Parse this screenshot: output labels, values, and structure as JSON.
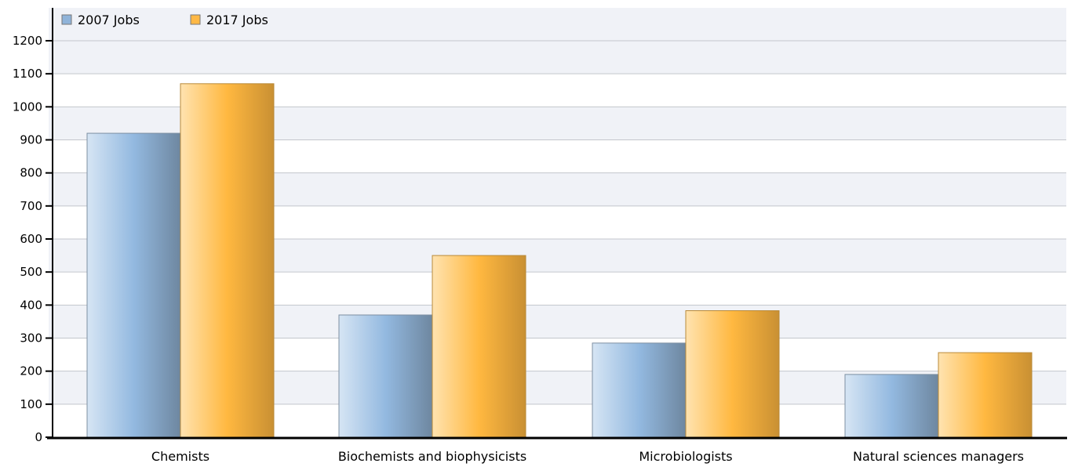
{
  "chart_data": {
    "type": "bar",
    "categories": [
      "Chemists",
      "Biochemists and biophysicists",
      "Microbiologists",
      "Natural sciences managers"
    ],
    "series": [
      {
        "name": "2007 Jobs",
        "values": [
          920,
          370,
          285,
          190
        ],
        "color": "#8fb3d9"
      },
      {
        "name": "2017 Jobs",
        "values": [
          1070,
          550,
          383,
          256
        ],
        "color": "#ffb845"
      }
    ],
    "ylim": [
      0,
      1200
    ],
    "yticks": [
      0,
      100,
      200,
      300,
      400,
      500,
      600,
      700,
      800,
      900,
      1000,
      1100,
      1200
    ],
    "grid": true,
    "legend_position": "top-left",
    "band_color": "#f0f2f7",
    "axis_color": "#000000"
  }
}
